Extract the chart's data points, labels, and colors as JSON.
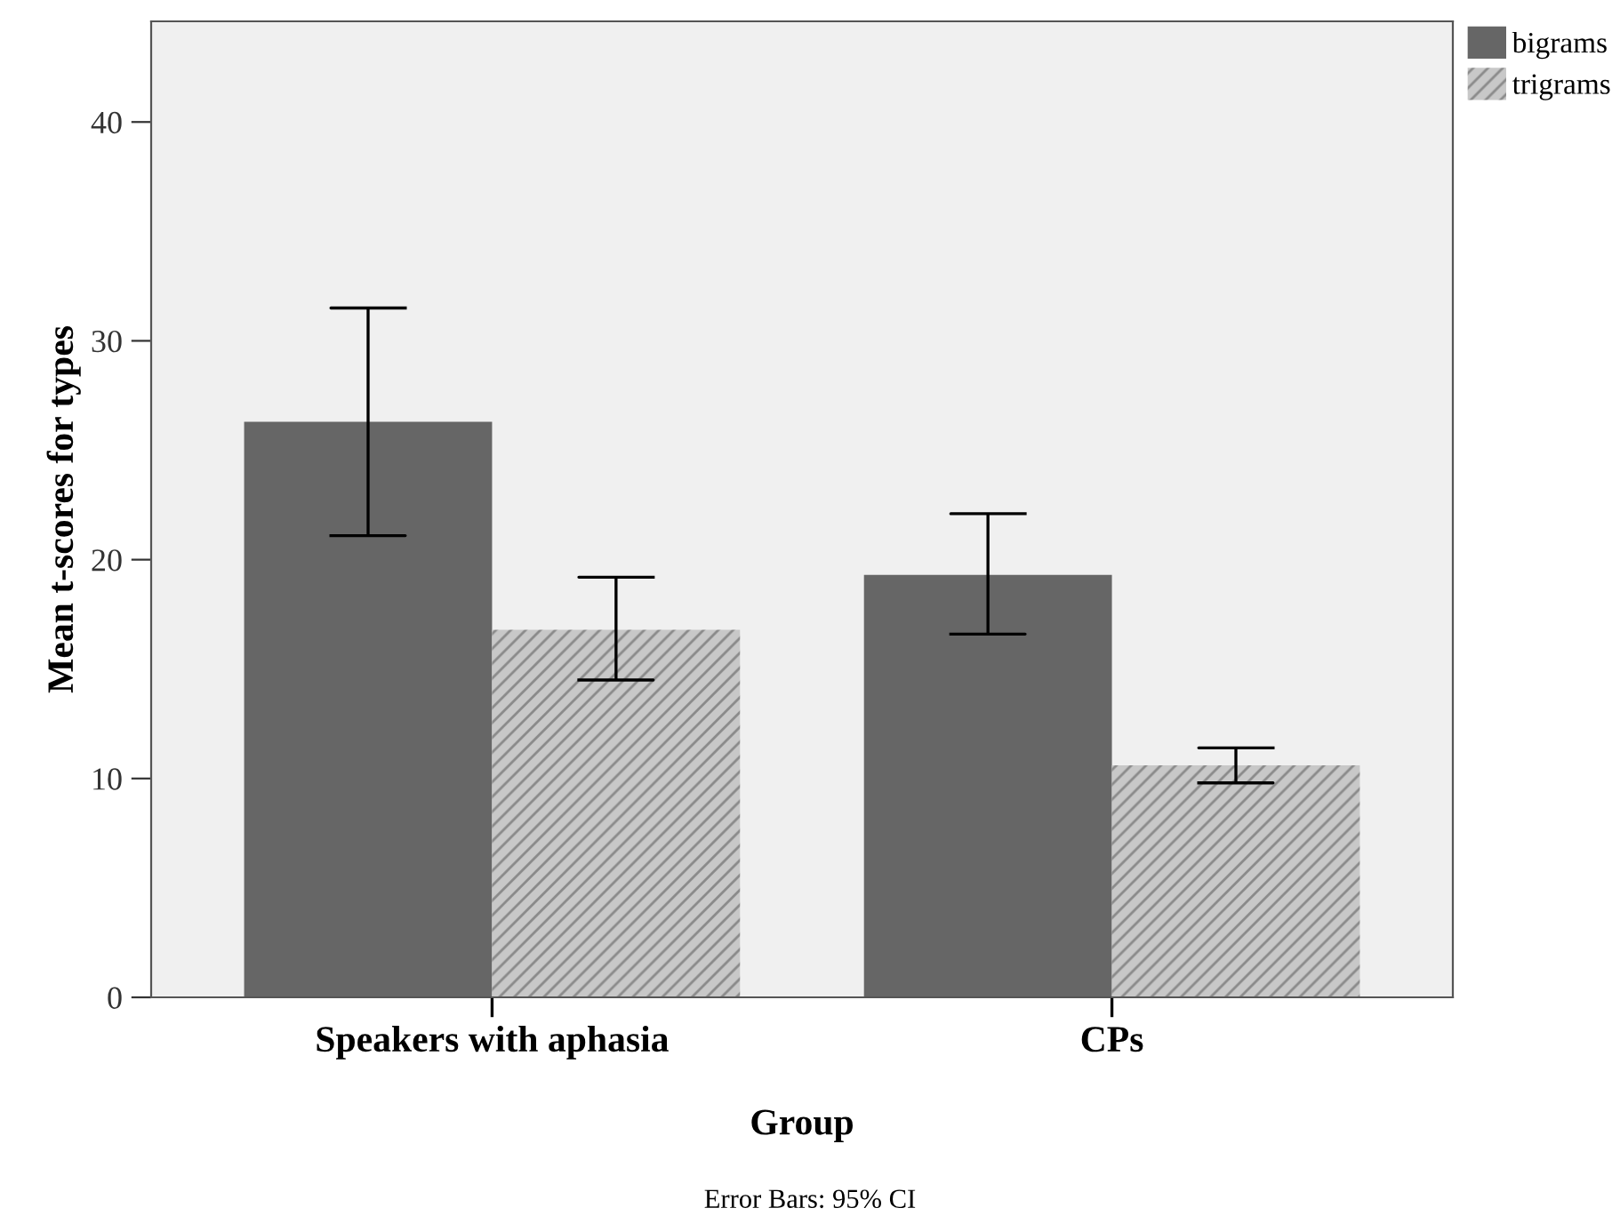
{
  "chart_data": {
    "type": "bar",
    "xlabel": "Group",
    "ylabel": "Mean t-scores for types",
    "categories": [
      "Speakers with aphasia",
      "CPs"
    ],
    "series": [
      {
        "name": "bigrams",
        "color": "#666666",
        "values": [
          26.3,
          19.3
        ],
        "errors": [
          [
            21.1,
            31.5
          ],
          [
            16.6,
            22.1
          ]
        ]
      },
      {
        "name": "trigrams",
        "color": "#c8c8c8",
        "values": [
          16.8,
          10.6
        ],
        "errors": [
          [
            14.5,
            19.2
          ],
          [
            9.8,
            11.4
          ]
        ]
      }
    ],
    "ylim": [
      0,
      44.6
    ],
    "yticks": [
      0,
      10,
      20,
      30,
      40
    ],
    "grid": false,
    "legend": "top right",
    "annotations": [
      "Error Bars: 95% CI"
    ]
  }
}
